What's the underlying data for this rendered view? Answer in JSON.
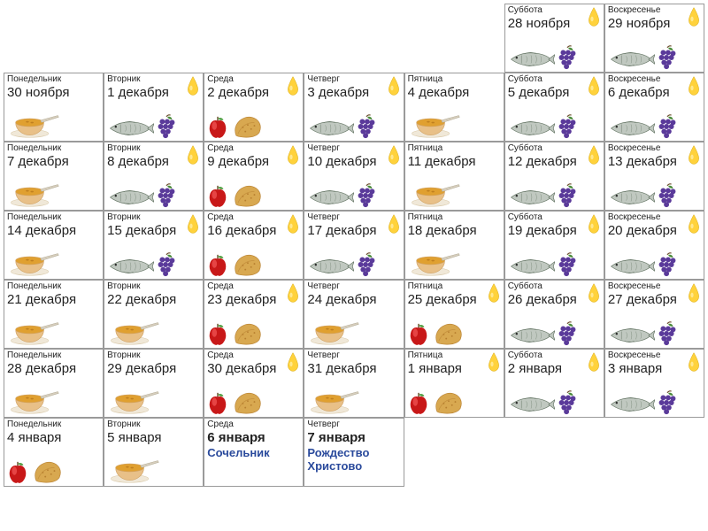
{
  "colors": {
    "border": "#9a9a9a",
    "text": "#222222",
    "special_text": "#2a4a9c",
    "oil_fill": "#ffd23c",
    "oil_highlight": "#ffec9e",
    "oil_stroke": "#d4a400",
    "fish_body": "#c0c8c0",
    "fish_stroke": "#6a7a6a",
    "grapes": "#5a3a9a",
    "grapes_leaf": "#4a8a3a",
    "soup_bowl": "#e8c088",
    "soup_liquid": "#e0a030",
    "soup_rim": "#d0a060",
    "apple_red": "#c81818",
    "apple_highlight": "#ff6a6a",
    "apple_leaf": "#4a9a3a",
    "bread": "#d8a850",
    "bread_dark": "#b88030"
  },
  "icon_types": [
    "soup",
    "fish_oil_grapes",
    "apple_bread",
    "fish_oil",
    "fish_grapes"
  ],
  "cells": [
    {
      "empty": true
    },
    {
      "empty": true
    },
    {
      "empty": true
    },
    {
      "empty": true
    },
    {
      "empty": true
    },
    {
      "dow": "Суббота",
      "date": "28 ноября",
      "icons": "fish_grapes",
      "oil_corner": true
    },
    {
      "dow": "Воскресенье",
      "date": "29 ноября",
      "icons": "fish_grapes",
      "oil_corner": true
    },
    {
      "dow": "Понедельник",
      "date": "30 ноября",
      "icons": "soup"
    },
    {
      "dow": "Вторник",
      "date": "1 декабря",
      "icons": "fish_grapes",
      "oil_corner": true
    },
    {
      "dow": "Среда",
      "date": "2 декабря",
      "icons": "apple_bread",
      "oil_corner": true
    },
    {
      "dow": "Четверг",
      "date": "3 декабря",
      "icons": "fish_grapes",
      "oil_corner": true
    },
    {
      "dow": "Пятница",
      "date": "4 декабря",
      "icons": "soup"
    },
    {
      "dow": "Суббота",
      "date": "5 декабря",
      "icons": "fish_grapes",
      "oil_corner": true
    },
    {
      "dow": "Воскресенье",
      "date": "6 декабря",
      "icons": "fish_grapes",
      "oil_corner": true
    },
    {
      "dow": "Понедельник",
      "date": "7 декабря",
      "icons": "soup"
    },
    {
      "dow": "Вторник",
      "date": "8 декабря",
      "icons": "fish_grapes",
      "oil_corner": true
    },
    {
      "dow": "Среда",
      "date": "9 декабря",
      "icons": "apple_bread",
      "oil_corner": true
    },
    {
      "dow": "Четверг",
      "date": "10 декабря",
      "icons": "fish_grapes",
      "oil_corner": true
    },
    {
      "dow": "Пятница",
      "date": "11 декабря",
      "icons": "soup"
    },
    {
      "dow": "Суббота",
      "date": "12 декабря",
      "icons": "fish_grapes",
      "oil_corner": true
    },
    {
      "dow": "Воскресенье",
      "date": "13 декабря",
      "icons": "fish_grapes",
      "oil_corner": true
    },
    {
      "dow": "Понедельник",
      "date": "14 декабря",
      "icons": "soup"
    },
    {
      "dow": "Вторник",
      "date": "15 декабря",
      "icons": "fish_grapes",
      "oil_corner": true
    },
    {
      "dow": "Среда",
      "date": "16 декабря",
      "icons": "apple_bread",
      "oil_corner": true
    },
    {
      "dow": "Четверг",
      "date": "17 декабря",
      "icons": "fish_grapes",
      "oil_corner": true
    },
    {
      "dow": "Пятница",
      "date": "18 декабря",
      "icons": "soup"
    },
    {
      "dow": "Суббота",
      "date": "19 декабря",
      "icons": "fish_grapes",
      "oil_corner": true
    },
    {
      "dow": "Воскресенье",
      "date": "20 декабря",
      "icons": "fish_grapes",
      "oil_corner": true
    },
    {
      "dow": "Понедельник",
      "date": "21 декабря",
      "icons": "soup"
    },
    {
      "dow": "Вторник",
      "date": "22 декабря",
      "icons": "soup"
    },
    {
      "dow": "Среда",
      "date": "23 декабря",
      "icons": "apple_bread",
      "oil_corner": true
    },
    {
      "dow": "Четверг",
      "date": "24 декабря",
      "icons": "soup"
    },
    {
      "dow": "Пятница",
      "date": "25 декабря",
      "icons": "apple_bread",
      "oil_corner": true
    },
    {
      "dow": "Суббота",
      "date": "26 декабря",
      "icons": "fish_grapes",
      "oil_corner": true
    },
    {
      "dow": "Воскресенье",
      "date": "27 декабря",
      "icons": "fish_grapes",
      "oil_corner": true
    },
    {
      "dow": "Понедельник",
      "date": "28 декабря",
      "icons": "soup"
    },
    {
      "dow": "Вторник",
      "date": "29 декабря",
      "icons": "soup"
    },
    {
      "dow": "Среда",
      "date": "30 декабря",
      "icons": "apple_bread",
      "oil_corner": true
    },
    {
      "dow": "Четверг",
      "date": "31 декабря",
      "icons": "soup"
    },
    {
      "dow": "Пятница",
      "date": "1 января",
      "icons": "apple_bread",
      "oil_corner": true
    },
    {
      "dow": "Суббота",
      "date": "2 января",
      "icons": "fish_grapes",
      "oil_corner": true
    },
    {
      "dow": "Воскресенье",
      "date": "3 января",
      "icons": "fish_grapes",
      "oil_corner": true
    },
    {
      "dow": "Понедельник",
      "date": "4 января",
      "icons": "apple_bread"
    },
    {
      "dow": "Вторник",
      "date": "5 января",
      "icons": "soup"
    },
    {
      "dow": "Среда",
      "date": "6 января",
      "bold": true,
      "special": "Сочельник"
    },
    {
      "dow": "Четверг",
      "date": "7 января",
      "bold": true,
      "special": "Рождество Христово"
    },
    {
      "empty": true
    },
    {
      "empty": true
    },
    {
      "empty": true
    }
  ]
}
